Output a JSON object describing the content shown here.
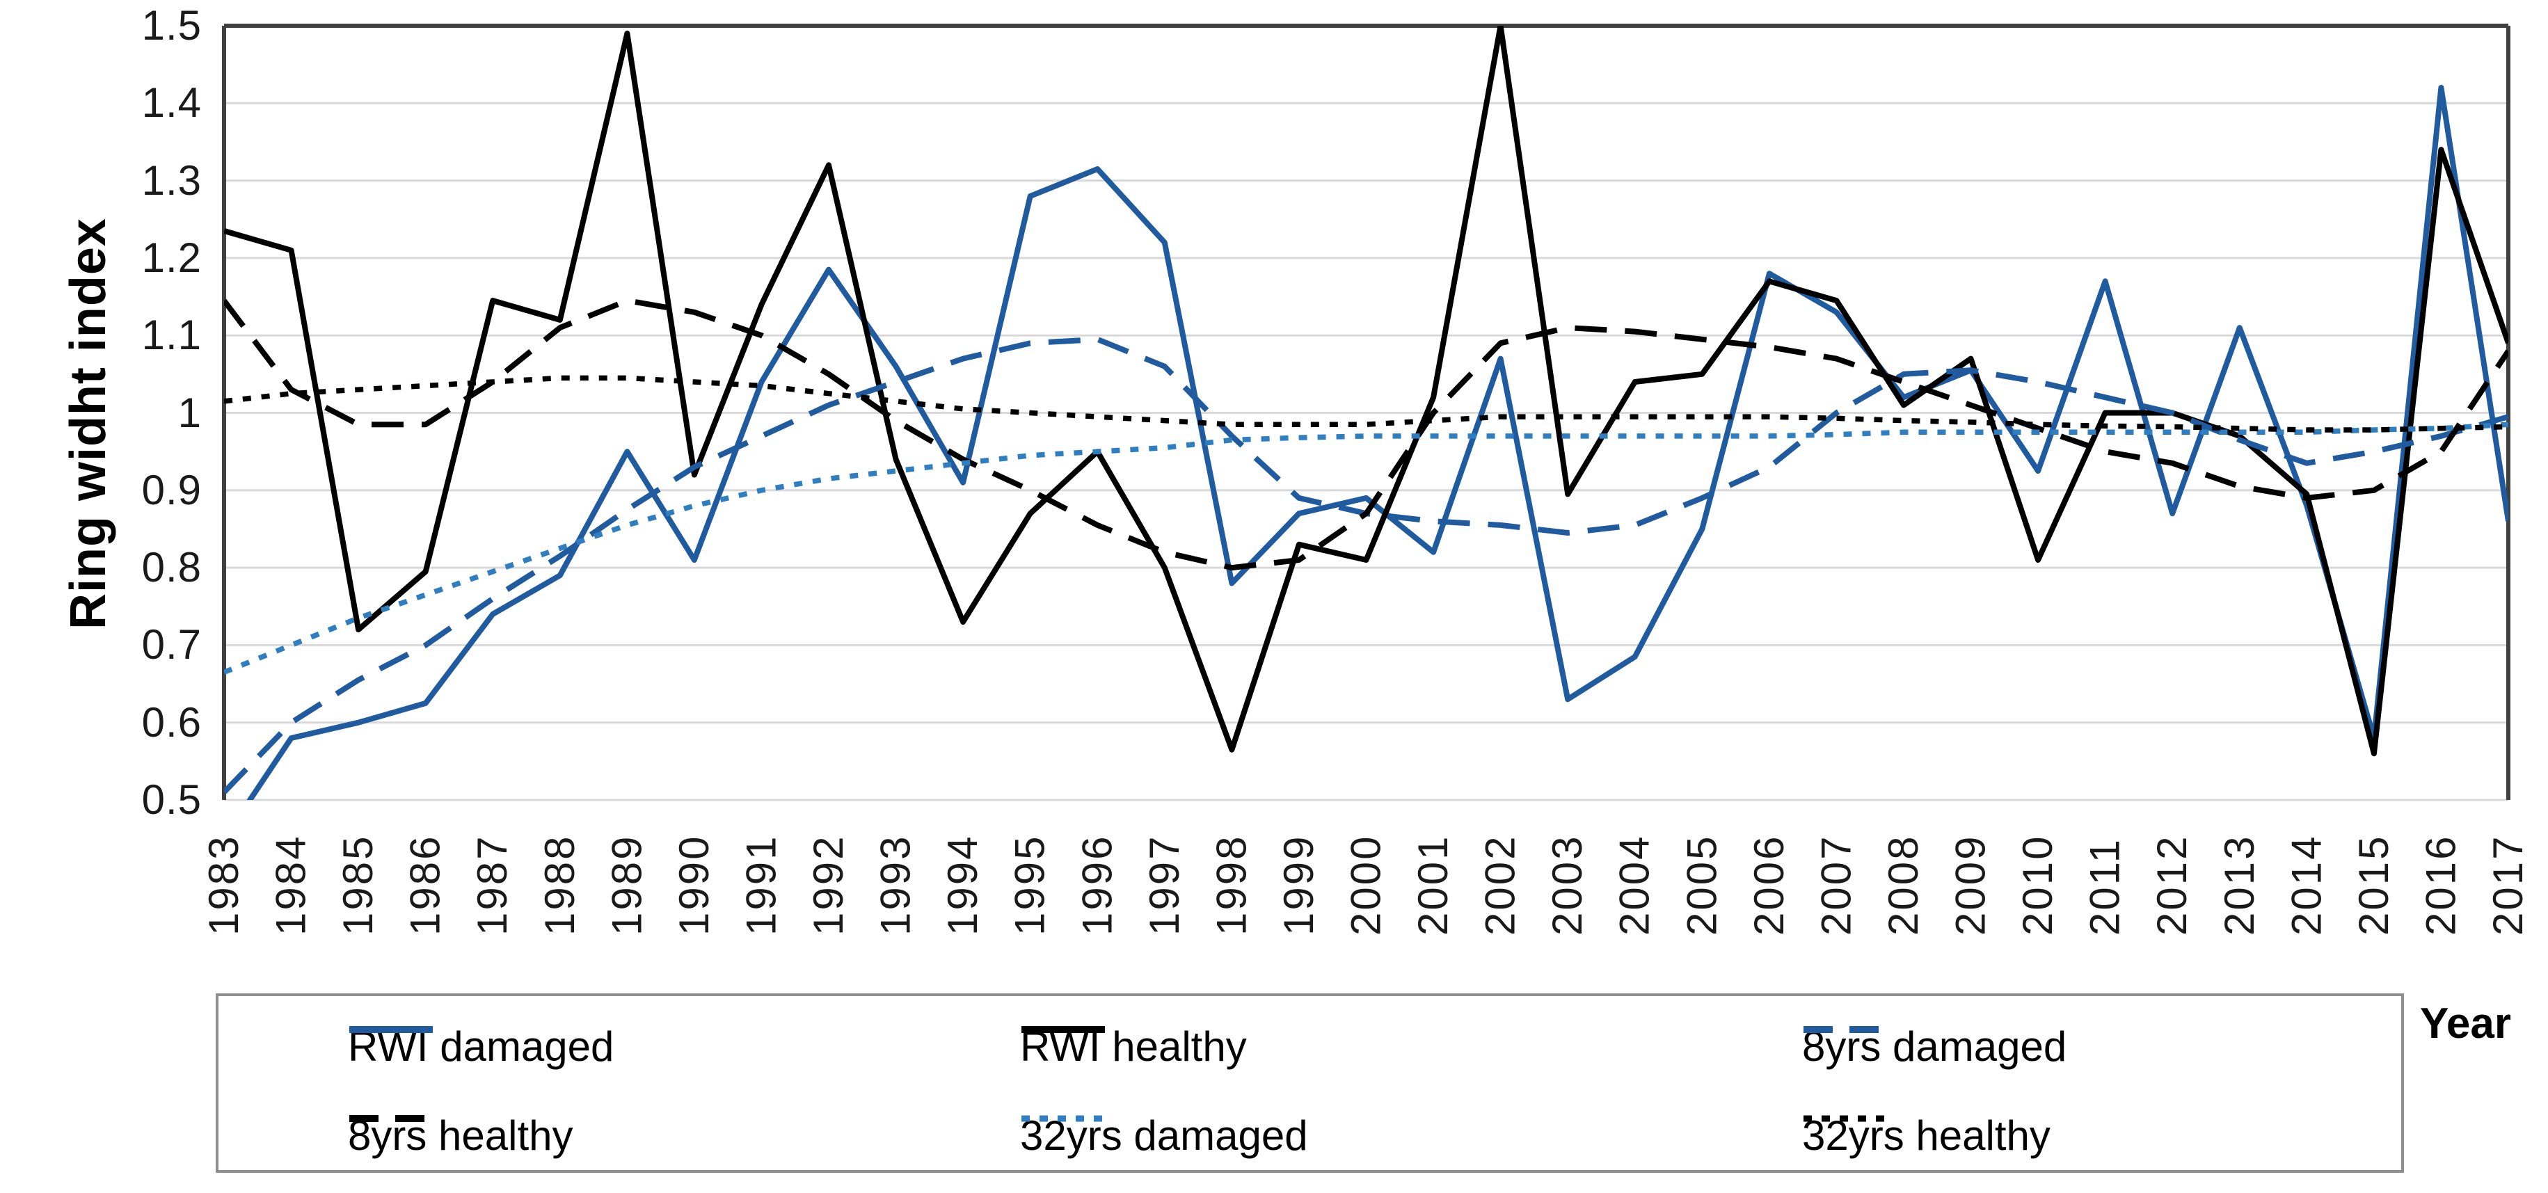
{
  "chart_data": {
    "type": "line",
    "title": "",
    "ylabel": "Ring widht index",
    "xlabel": "Year",
    "ylim": [
      0.5,
      1.5
    ],
    "ytick_step": 0.1,
    "ytick_labels": [
      "1.5",
      "1.4",
      "1.3",
      "1.2",
      "1.1",
      "1",
      "0.9",
      "0.8",
      "0.7",
      "0.6",
      "0.5"
    ],
    "grid": true,
    "legend_position": "bottom-box",
    "categories": [
      "1983",
      "1984",
      "1985",
      "1986",
      "1987",
      "1988",
      "1989",
      "1990",
      "1991",
      "1992",
      "1993",
      "1994",
      "1995",
      "1996",
      "1997",
      "1998",
      "1999",
      "2000",
      "2001",
      "2002",
      "2003",
      "2004",
      "2005",
      "2006",
      "2007",
      "2008",
      "2009",
      "2010",
      "2011",
      "2012",
      "2013",
      "2014",
      "2015",
      "2016",
      "2017"
    ],
    "series": [
      {
        "name": "RWI damaged",
        "color": "#1F5B9E",
        "dash": "solid",
        "values": [
          0.45,
          0.58,
          0.6,
          0.625,
          0.74,
          0.79,
          0.95,
          0.81,
          1.04,
          1.185,
          1.06,
          0.91,
          1.28,
          1.315,
          1.22,
          0.78,
          0.87,
          0.89,
          0.82,
          1.07,
          0.63,
          0.685,
          0.85,
          1.18,
          1.13,
          1.02,
          1.055,
          0.925,
          1.17,
          0.87,
          1.11,
          0.88,
          0.58,
          1.42,
          0.86
        ]
      },
      {
        "name": "RWI healthy",
        "color": "#000000",
        "dash": "solid",
        "values": [
          1.235,
          1.21,
          0.72,
          0.795,
          1.145,
          1.12,
          1.49,
          0.92,
          1.14,
          1.32,
          0.94,
          0.73,
          0.87,
          0.95,
          0.8,
          0.565,
          0.83,
          0.81,
          1.02,
          1.5,
          0.895,
          1.04,
          1.05,
          1.17,
          1.145,
          1.01,
          1.07,
          0.81,
          1.0,
          1.0,
          0.97,
          0.895,
          0.56,
          1.34,
          1.09
        ]
      },
      {
        "name": "8yrs damaged",
        "color": "#1F5B9E",
        "dash": "long-dash",
        "values": [
          0.51,
          0.6,
          0.655,
          0.7,
          0.76,
          0.815,
          0.875,
          0.93,
          0.97,
          1.01,
          1.04,
          1.07,
          1.09,
          1.095,
          1.06,
          0.97,
          0.89,
          0.87,
          0.86,
          0.855,
          0.845,
          0.855,
          0.89,
          0.93,
          1.0,
          1.05,
          1.055,
          1.04,
          1.02,
          1.0,
          0.965,
          0.935,
          0.95,
          0.97,
          0.995
        ]
      },
      {
        "name": "8yrs healthy",
        "color": "#000000",
        "dash": "long-dash",
        "values": [
          1.145,
          1.03,
          0.985,
          0.985,
          1.04,
          1.11,
          1.145,
          1.13,
          1.1,
          1.05,
          0.99,
          0.94,
          0.9,
          0.855,
          0.82,
          0.8,
          0.81,
          0.87,
          1.0,
          1.09,
          1.11,
          1.105,
          1.095,
          1.085,
          1.07,
          1.04,
          1.01,
          0.98,
          0.95,
          0.935,
          0.905,
          0.89,
          0.9,
          0.95,
          1.08
        ]
      },
      {
        "name": "32yrs damaged",
        "color": "#2E7EC1",
        "dash": "dot",
        "values": [
          0.665,
          0.7,
          0.735,
          0.765,
          0.795,
          0.825,
          0.855,
          0.88,
          0.9,
          0.915,
          0.925,
          0.935,
          0.945,
          0.95,
          0.955,
          0.965,
          0.968,
          0.97,
          0.97,
          0.97,
          0.97,
          0.97,
          0.97,
          0.97,
          0.972,
          0.975,
          0.975,
          0.975,
          0.975,
          0.975,
          0.975,
          0.975,
          0.978,
          0.98,
          0.985
        ]
      },
      {
        "name": "32yrs healthy",
        "color": "#000000",
        "dash": "dot",
        "values": [
          1.015,
          1.025,
          1.03,
          1.035,
          1.04,
          1.045,
          1.045,
          1.04,
          1.035,
          1.025,
          1.015,
          1.005,
          1.0,
          0.995,
          0.99,
          0.985,
          0.985,
          0.985,
          0.99,
          0.995,
          0.995,
          0.995,
          0.995,
          0.995,
          0.993,
          0.99,
          0.988,
          0.985,
          0.983,
          0.982,
          0.98,
          0.978,
          0.978,
          0.98,
          0.982
        ]
      }
    ]
  },
  "colors": {
    "gridline": "#D9D9D9",
    "axis_border": "#404040",
    "bottom_border": "#D9D9D9",
    "tick_text": "#1a1a1a",
    "legend_border": "#909090"
  }
}
